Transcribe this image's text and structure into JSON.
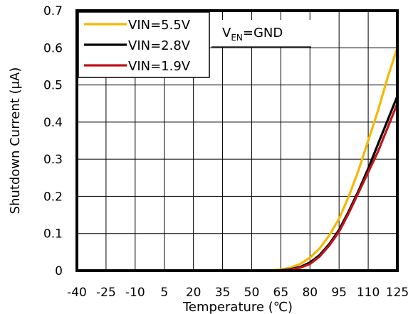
{
  "chart_data": {
    "type": "line",
    "title": "",
    "xlabel": "Temperature (℃)",
    "ylabel": "Shutdown Current (μA)",
    "xlim": [
      -40,
      125
    ],
    "ylim": [
      0,
      0.7
    ],
    "x_ticks": [
      -40,
      -25,
      -10,
      5,
      20,
      35,
      50,
      65,
      80,
      95,
      110,
      125
    ],
    "x_tick_labels": [
      "-40",
      "-25",
      "-10",
      "5",
      "20",
      "35",
      "50",
      "65",
      "80",
      "95",
      "110",
      "125"
    ],
    "y_ticks": [
      0,
      0.1,
      0.2,
      0.3,
      0.4,
      0.5,
      0.6,
      0.7
    ],
    "y_tick_labels": [
      "0",
      "0.1",
      "0.2",
      "0.3",
      "0.4",
      "0.5",
      "0.6",
      "0.7"
    ],
    "grid": true,
    "legend_position": "top-left",
    "annotation": {
      "main": "V",
      "sub": "EN",
      "rest": "=GND"
    },
    "series": [
      {
        "name": "VIN=5.5V",
        "color": "#f5b800",
        "x": [
          -40,
          -25,
          -10,
          5,
          20,
          35,
          50,
          60,
          65,
          70,
          75,
          80,
          85,
          90,
          95,
          100,
          105,
          110,
          115,
          120,
          125
        ],
        "y": [
          0,
          0,
          0,
          0,
          0,
          0,
          0,
          0.001,
          0.003,
          0.008,
          0.018,
          0.035,
          0.06,
          0.095,
          0.14,
          0.2,
          0.27,
          0.35,
          0.43,
          0.52,
          0.6
        ]
      },
      {
        "name": "VIN=2.8V",
        "color": "#000000",
        "x": [
          -40,
          -25,
          -10,
          5,
          20,
          35,
          50,
          65,
          70,
          75,
          80,
          85,
          90,
          95,
          100,
          105,
          110,
          115,
          120,
          125
        ],
        "y": [
          0,
          0,
          0,
          0,
          0,
          0,
          0,
          0.001,
          0.004,
          0.01,
          0.022,
          0.042,
          0.072,
          0.11,
          0.16,
          0.215,
          0.275,
          0.34,
          0.405,
          0.47
        ]
      },
      {
        "name": "VIN=1.9V",
        "color": "#c0141c",
        "x": [
          -40,
          -25,
          -10,
          5,
          20,
          35,
          50,
          65,
          70,
          75,
          80,
          85,
          90,
          95,
          100,
          105,
          110,
          115,
          120,
          125
        ],
        "y": [
          0,
          0,
          0,
          0,
          0.001,
          0.001,
          0,
          0,
          0.003,
          0.008,
          0.018,
          0.038,
          0.068,
          0.105,
          0.155,
          0.21,
          0.265,
          0.32,
          0.385,
          0.45
        ]
      }
    ]
  }
}
